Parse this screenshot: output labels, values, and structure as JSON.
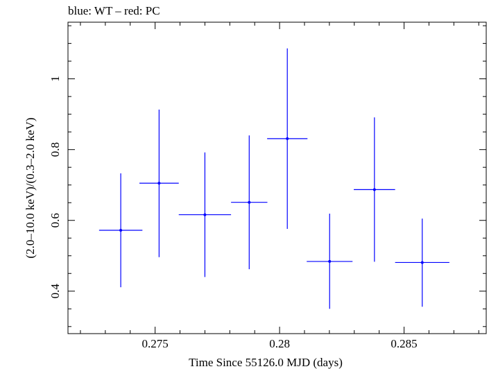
{
  "chart_data": {
    "type": "scatter",
    "title": "blue: WT – red: PC",
    "xlabel": "Time Since 55126.0 MJD (days)",
    "ylabel": "(2.0–10.0 keV)/(0.3–2.0 keV)",
    "xlim": [
      0.2715,
      0.2883
    ],
    "ylim": [
      0.28,
      1.16
    ],
    "x_ticks": [
      0.275,
      0.28,
      0.285
    ],
    "x_tick_labels": [
      "0.275",
      "0.28",
      "0.285"
    ],
    "x_minor_step": 0.001,
    "y_ticks": [
      0.4,
      0.6,
      0.8,
      1.0
    ],
    "y_tick_labels": [
      "0.4",
      "0.6",
      "0.8",
      "1"
    ],
    "y_minor_step": 0.05,
    "grid": false,
    "series": [
      {
        "color": "#0000ff",
        "points": [
          {
            "x": 0.27362,
            "y": 0.572,
            "xerr": 0.00087,
            "ylo": 0.411,
            "yhi": 0.733
          },
          {
            "x": 0.27516,
            "y": 0.705,
            "xerr": 0.00079,
            "ylo": 0.496,
            "yhi": 0.913
          },
          {
            "x": 0.277,
            "y": 0.616,
            "xerr": 0.00105,
            "ylo": 0.44,
            "yhi": 0.792
          },
          {
            "x": 0.27878,
            "y": 0.651,
            "xerr": 0.00073,
            "ylo": 0.462,
            "yhi": 0.84
          },
          {
            "x": 0.28031,
            "y": 0.831,
            "xerr": 0.00081,
            "ylo": 0.576,
            "yhi": 1.086
          },
          {
            "x": 0.28201,
            "y": 0.484,
            "xerr": 0.00092,
            "ylo": 0.35,
            "yhi": 0.619
          },
          {
            "x": 0.28381,
            "y": 0.687,
            "xerr": 0.00083,
            "ylo": 0.483,
            "yhi": 0.891
          },
          {
            "x": 0.28573,
            "y": 0.481,
            "xerr": 0.00109,
            "ylo": 0.356,
            "yhi": 0.605
          }
        ]
      }
    ]
  }
}
